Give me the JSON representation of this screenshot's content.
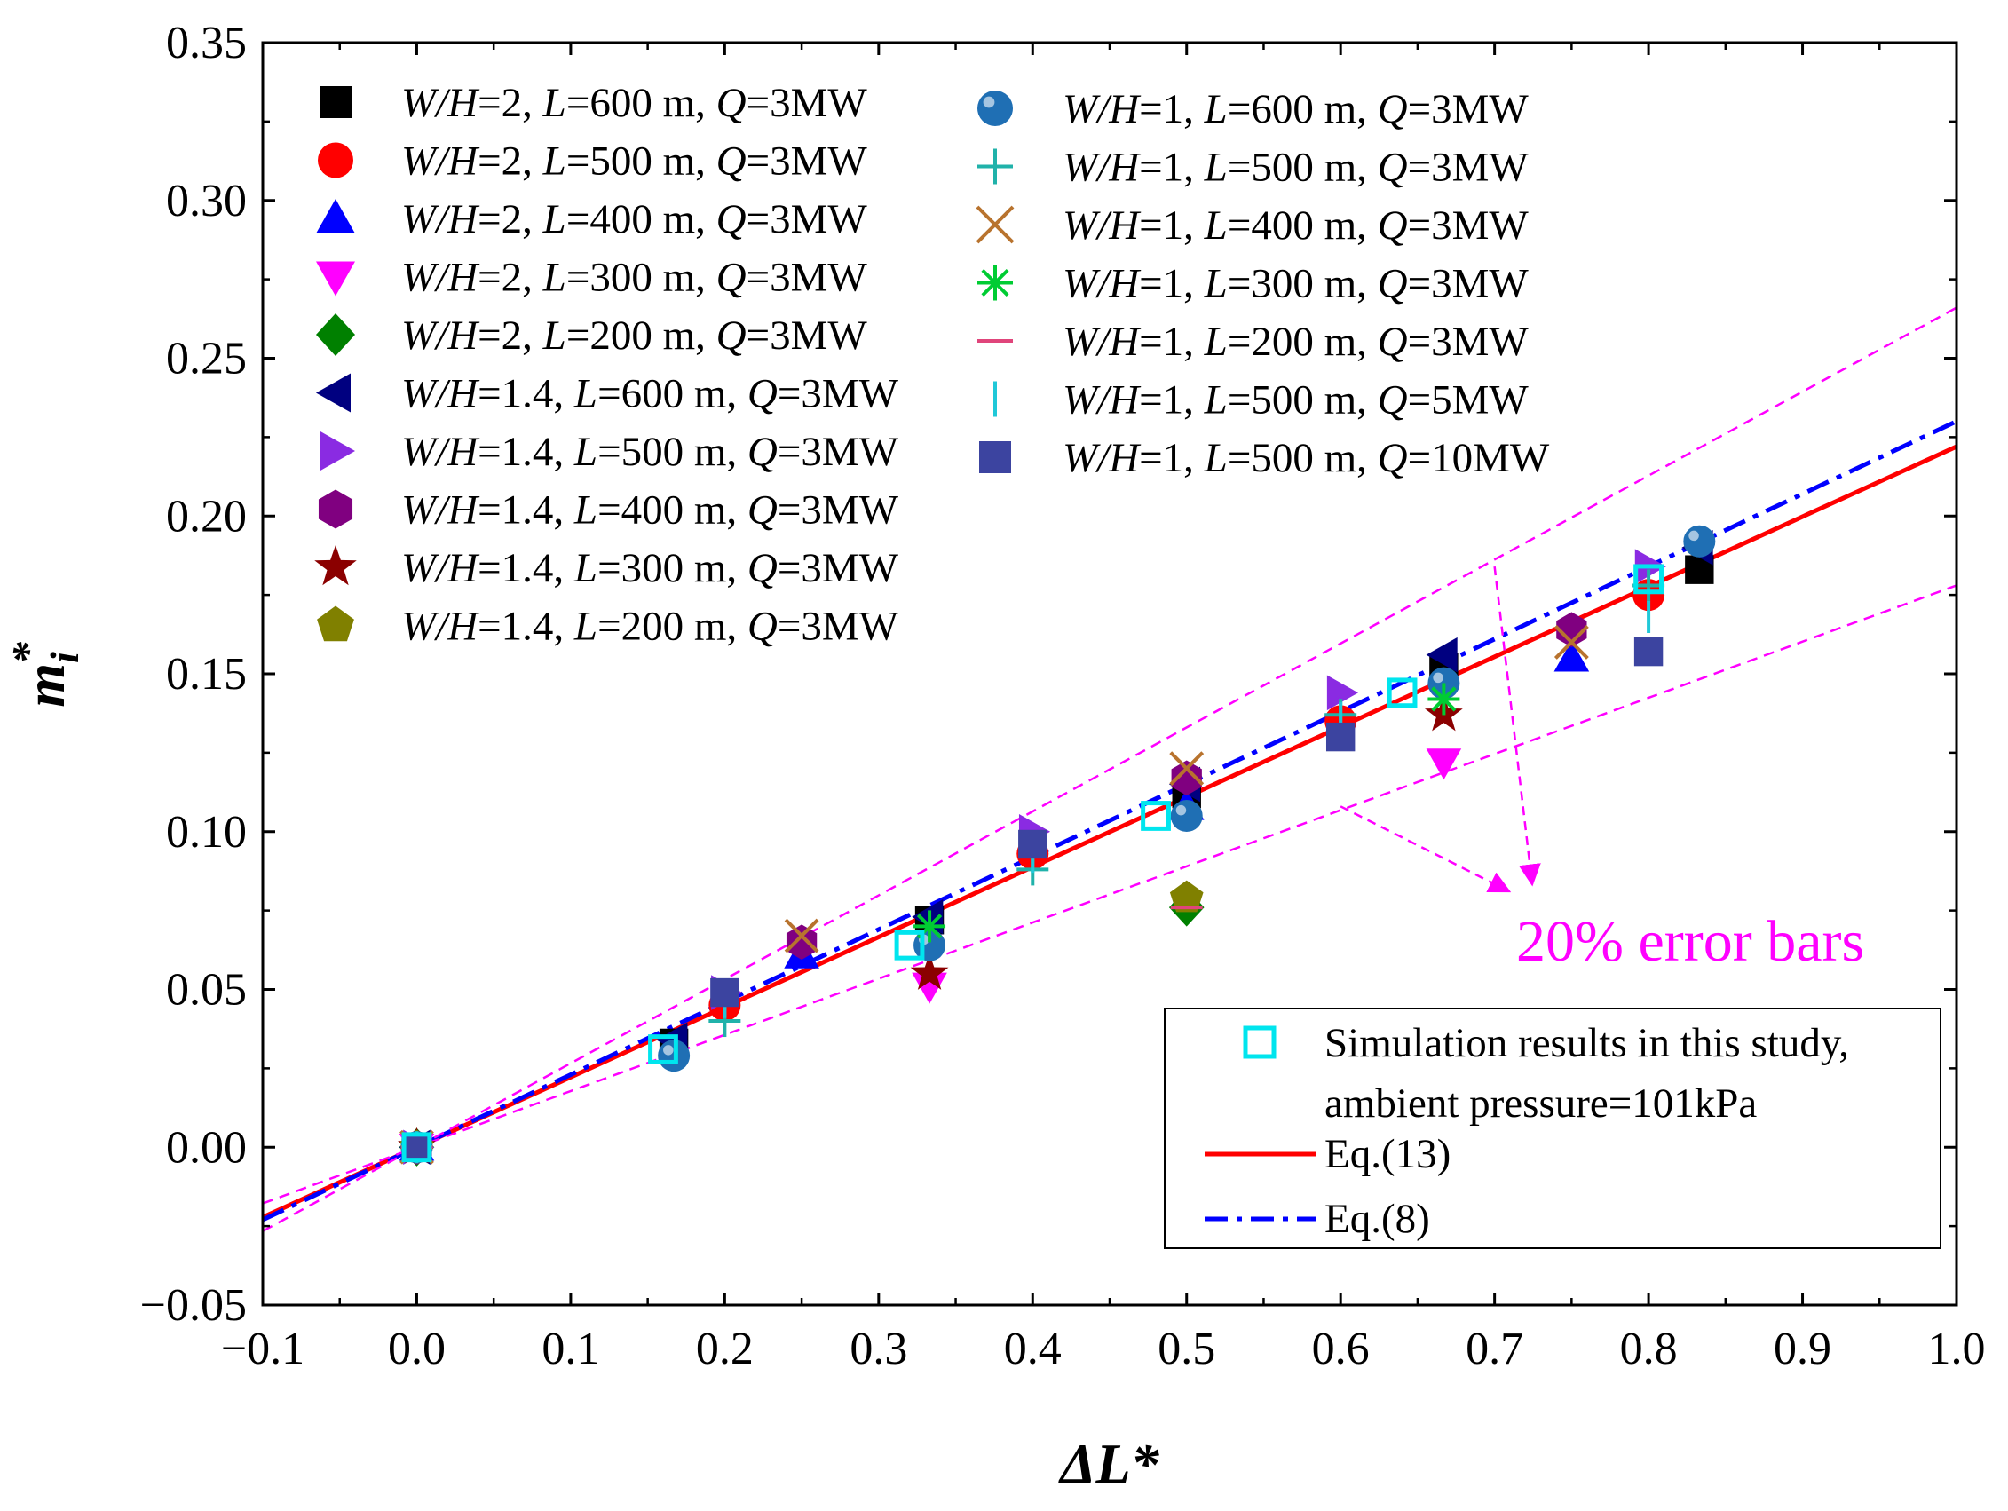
{
  "chart_data": {
    "type": "scatter",
    "xlabel": "ΔL*",
    "ylabel": "m_i*",
    "ylabel_base": "m",
    "ylabel_sub": "i",
    "ylabel_sup": "*",
    "xlim": [
      -0.1,
      1.0
    ],
    "ylim": [
      -0.05,
      0.35
    ],
    "x_ticks": [
      -0.1,
      0.0,
      0.1,
      0.2,
      0.3,
      0.4,
      0.5,
      0.6,
      0.7,
      0.8,
      0.9,
      1.0
    ],
    "x_tick_labels": [
      "−0.1",
      "0.0",
      "0.1",
      "0.2",
      "0.3",
      "0.4",
      "0.5",
      "0.6",
      "0.7",
      "0.8",
      "0.9",
      "1.0"
    ],
    "y_ticks": [
      -0.05,
      0.0,
      0.05,
      0.1,
      0.15,
      0.2,
      0.25,
      0.3,
      0.35
    ],
    "y_tick_labels": [
      "−0.05",
      "0.00",
      "0.05",
      "0.10",
      "0.15",
      "0.20",
      "0.25",
      "0.30",
      "0.35"
    ],
    "grid": false,
    "legend_position": "top-left",
    "series": [
      {
        "name": "W/H=2, L=600 m, Q=3MW",
        "parts": [
          "W/H",
          "=2, ",
          "L",
          "=600 m, ",
          "Q",
          "=3MW"
        ],
        "marker": "square",
        "color": "#000000",
        "x": [
          0.0,
          0.167,
          0.333,
          0.5,
          0.667,
          0.833
        ],
        "y": [
          0.0,
          0.033,
          0.072,
          0.112,
          0.152,
          0.183
        ]
      },
      {
        "name": "W/H=2, L=500 m, Q=3MW",
        "parts": [
          "W/H",
          "=2, ",
          "L",
          "=500 m, ",
          "Q",
          "=3MW"
        ],
        "marker": "circle",
        "color": "#ff0000",
        "x": [
          0.0,
          0.2,
          0.4,
          0.6,
          0.8
        ],
        "y": [
          0.0,
          0.045,
          0.093,
          0.135,
          0.175
        ]
      },
      {
        "name": "W/H=2, L=400 m, Q=3MW",
        "parts": [
          "W/H",
          "=2, ",
          "L",
          "=400 m, ",
          "Q",
          "=3MW"
        ],
        "marker": "triangle-up",
        "color": "#0000ff",
        "x": [
          0.0,
          0.25,
          0.5,
          0.75
        ],
        "y": [
          0.0,
          0.061,
          0.108,
          0.155
        ]
      },
      {
        "name": "W/H=2, L=300 m, Q=3MW",
        "parts": [
          "W/H",
          "=2, ",
          "L",
          "=300 m, ",
          "Q",
          "=3MW"
        ],
        "marker": "triangle-down",
        "color": "#ff00ff",
        "x": [
          0.0,
          0.333,
          0.667
        ],
        "y": [
          0.0,
          0.051,
          0.122
        ]
      },
      {
        "name": "W/H=2, L=200 m, Q=3MW",
        "parts": [
          "W/H",
          "=2, ",
          "L",
          "=200 m, ",
          "Q",
          "=3MW"
        ],
        "marker": "diamond",
        "color": "#008000",
        "x": [
          0.0,
          0.5
        ],
        "y": [
          0.0,
          0.076
        ]
      },
      {
        "name": "W/H=1.4, L=600 m, Q=3MW",
        "parts": [
          "W/H",
          "=1.4, ",
          "L",
          "=600 m, ",
          "Q",
          "=3MW"
        ],
        "marker": "triangle-left",
        "color": "#000080",
        "x": [
          0.0,
          0.167,
          0.333,
          0.5,
          0.667,
          0.833
        ],
        "y": [
          0.0,
          0.034,
          0.073,
          0.115,
          0.156,
          0.19
        ]
      },
      {
        "name": "W/H=1.4, L=500 m, Q=3MW",
        "parts": [
          "W/H",
          "=1.4, ",
          "L",
          "=500 m, ",
          "Q",
          "=3MW"
        ],
        "marker": "triangle-right",
        "color": "#8a2be2",
        "x": [
          0.0,
          0.2,
          0.4,
          0.6,
          0.8
        ],
        "y": [
          0.0,
          0.049,
          0.1,
          0.144,
          0.184
        ]
      },
      {
        "name": "W/H=1.4, L=400 m, Q=3MW",
        "parts": [
          "W/H",
          "=1.4, ",
          "L",
          "=400 m, ",
          "Q",
          "=3MW"
        ],
        "marker": "hexagon",
        "color": "#800080",
        "x": [
          0.0,
          0.25,
          0.5,
          0.75
        ],
        "y": [
          0.0,
          0.065,
          0.117,
          0.164
        ]
      },
      {
        "name": "W/H=1.4, L=300 m, Q=3MW",
        "parts": [
          "W/H",
          "=1.4, ",
          "L",
          "=300 m, ",
          "Q",
          "=3MW"
        ],
        "marker": "star",
        "color": "#8b0000",
        "x": [
          0.0,
          0.333,
          0.667
        ],
        "y": [
          0.0,
          0.055,
          0.137
        ]
      },
      {
        "name": "W/H=1.4, L=200 m, Q=3MW",
        "parts": [
          "W/H",
          "=1.4, ",
          "L",
          "=200 m, ",
          "Q",
          "=3MW"
        ],
        "marker": "pentagon",
        "color": "#808000",
        "x": [
          0.0,
          0.5
        ],
        "y": [
          0.0,
          0.079
        ]
      },
      {
        "name": "W/H=1, L=600 m, Q=3MW",
        "parts": [
          "W/H",
          "=1, ",
          "L",
          "=600 m, ",
          "Q",
          "=3MW"
        ],
        "marker": "sphere",
        "color": "#1f6fb4",
        "x": [
          0.0,
          0.167,
          0.333,
          0.5,
          0.667,
          0.833
        ],
        "y": [
          0.0,
          0.029,
          0.064,
          0.105,
          0.147,
          0.192
        ]
      },
      {
        "name": "W/H=1, L=500 m, Q=3MW",
        "parts": [
          "W/H",
          "=1, ",
          "L",
          "=500 m, ",
          "Q",
          "=3MW"
        ],
        "marker": "plus",
        "color": "#20b2aa",
        "x": [
          0.0,
          0.2,
          0.4,
          0.6,
          0.8
        ],
        "y": [
          0.0,
          0.04,
          0.088,
          0.137,
          0.178
        ]
      },
      {
        "name": "W/H=1, L=400 m, Q=3MW",
        "parts": [
          "W/H",
          "=1, ",
          "L",
          "=400 m, ",
          "Q",
          "=3MW"
        ],
        "marker": "cross",
        "color": "#b8732e",
        "x": [
          0.0,
          0.25,
          0.5,
          0.75
        ],
        "y": [
          0.0,
          0.067,
          0.12,
          0.16
        ]
      },
      {
        "name": "W/H=1, L=300 m, Q=3MW",
        "parts": [
          "W/H",
          "=1, ",
          "L",
          "=300 m, ",
          "Q",
          "=3MW"
        ],
        "marker": "asterisk",
        "color": "#00cc33",
        "x": [
          0.0,
          0.333,
          0.667
        ],
        "y": [
          0.0,
          0.07,
          0.142
        ]
      },
      {
        "name": "W/H=1, L=200 m, Q=3MW",
        "parts": [
          "W/H",
          "=1, ",
          "L",
          "=200 m, ",
          "Q",
          "=3MW"
        ],
        "marker": "hline",
        "color": "#e0457b",
        "x": [
          0.0,
          0.5
        ],
        "y": [
          0.0,
          0.076
        ]
      },
      {
        "name": "W/H=1, L=500 m, Q=5MW",
        "parts": [
          "W/H",
          "=1, ",
          "L",
          "=500 m, ",
          "Q",
          "=5MW"
        ],
        "marker": "vline",
        "color": "#20c8d8",
        "x": [
          0.0,
          0.2,
          0.4,
          0.6,
          0.8
        ],
        "y": [
          0.0,
          0.046,
          0.092,
          0.136,
          0.168
        ]
      },
      {
        "name": "W/H=1, L=500 m, Q=10MW",
        "parts": [
          "W/H",
          "=1, ",
          "L",
          "=500 m, ",
          "Q",
          "=10MW"
        ],
        "marker": "square",
        "color": "#3c44a0",
        "x": [
          0.0,
          0.2,
          0.4,
          0.6,
          0.8
        ],
        "y": [
          0.0,
          0.049,
          0.096,
          0.13,
          0.157
        ]
      },
      {
        "name": "Simulation results in this study, ambient pressure=101kPa",
        "label_lines": [
          "Simulation results in this study,",
          "ambient pressure=101kPa"
        ],
        "marker": "open-square",
        "color": "#00e5ee",
        "x": [
          0.0,
          0.16,
          0.32,
          0.48,
          0.64,
          0.8
        ],
        "y": [
          0.0,
          0.031,
          0.064,
          0.105,
          0.144,
          0.18
        ]
      }
    ],
    "lines": [
      {
        "name": "Eq.(13)",
        "style": "solid",
        "color": "#ff0000",
        "x": [
          -0.1,
          1.0
        ],
        "y": [
          -0.0222,
          0.222
        ]
      },
      {
        "name": "Eq.(8)",
        "style": "dashdot",
        "color": "#0000ff",
        "x": [
          -0.1,
          1.0
        ],
        "y": [
          -0.023,
          0.23
        ]
      },
      {
        "name": "upper 20% error bar",
        "style": "dashed",
        "color": "#ff00ff",
        "x": [
          -0.1,
          1.0
        ],
        "y": [
          -0.0266,
          0.266
        ]
      },
      {
        "name": "lower 20% error bar",
        "style": "dashed",
        "color": "#ff00ff",
        "x": [
          -0.1,
          1.0
        ],
        "y": [
          -0.0178,
          0.178
        ]
      }
    ],
    "annotations": [
      {
        "text": "20% error bars",
        "color": "#ff00ff",
        "position": "right-middle",
        "arrow_targets": [
          [
            0.7,
            0.184
          ],
          [
            0.6,
            0.108
          ]
        ]
      }
    ]
  }
}
